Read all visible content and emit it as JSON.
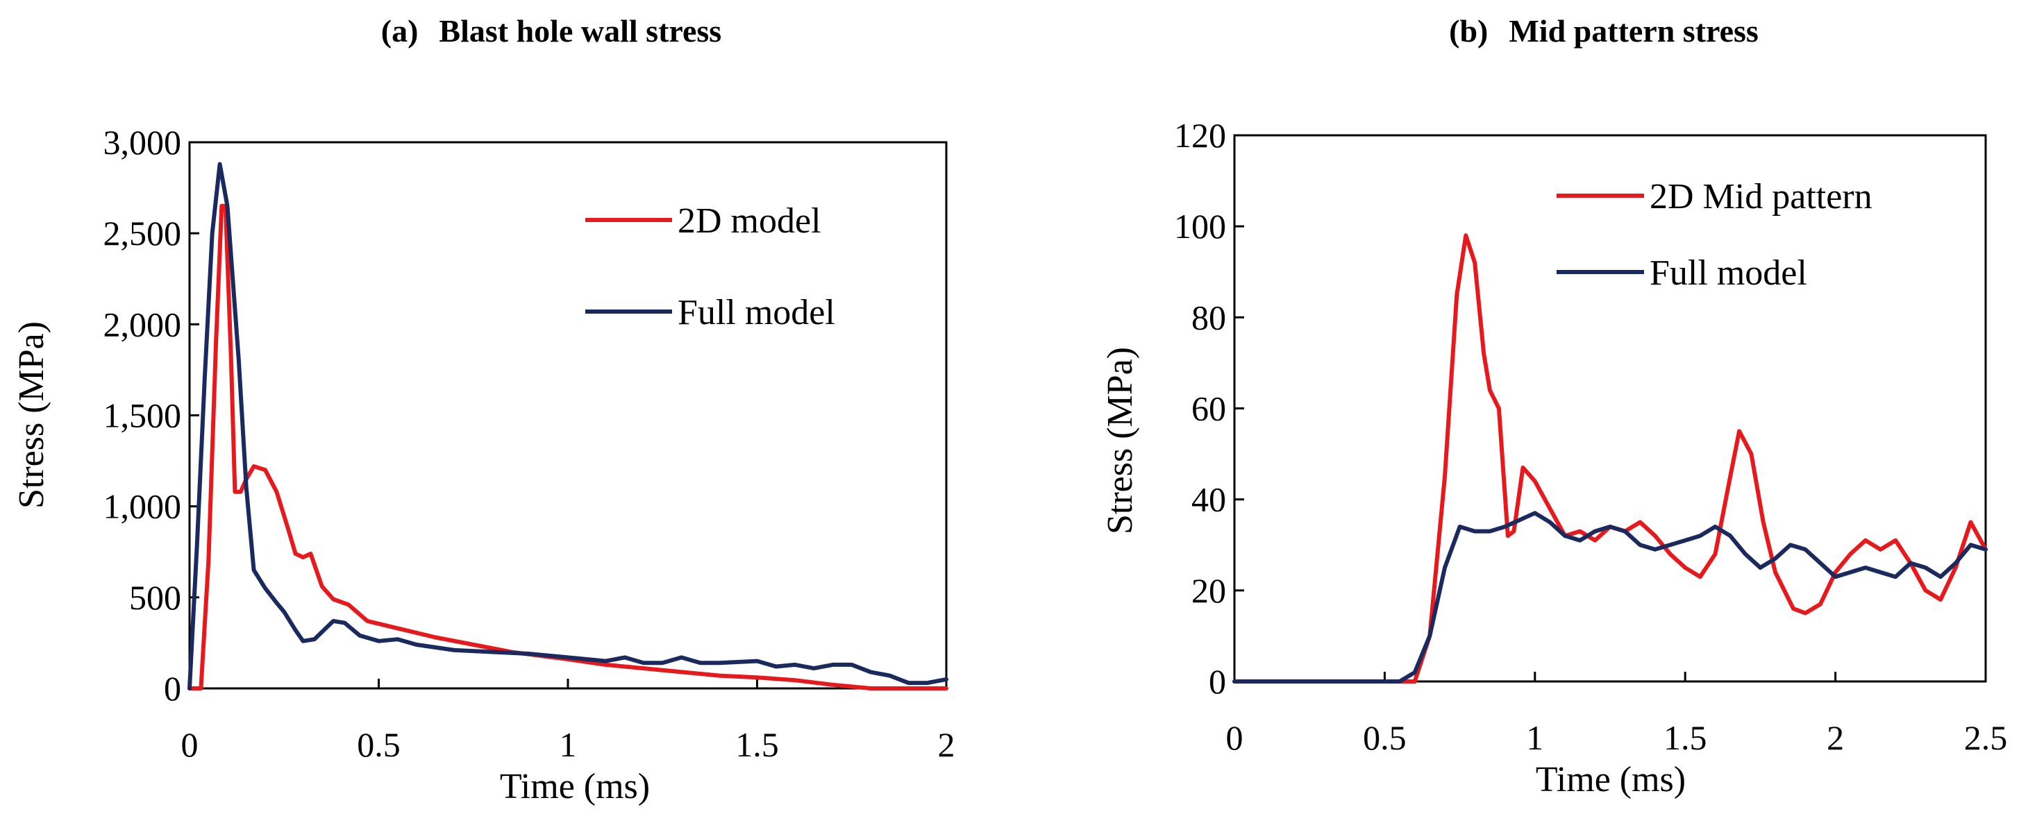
{
  "chart_data": [
    {
      "type": "line",
      "panel": "(a)",
      "title": "Blast hole wall stress",
      "xlabel": "Time (ms)",
      "ylabel": "Stress (MPa)",
      "xlim": [
        0,
        2
      ],
      "ylim": [
        0,
        3000
      ],
      "xticks": [
        0,
        0.5,
        1,
        1.5,
        2
      ],
      "xtick_labels": [
        "0",
        "0.5",
        "1",
        "1.5",
        "2"
      ],
      "yticks": [
        0,
        500,
        1000,
        1500,
        2000,
        2500,
        3000
      ],
      "ytick_labels": [
        "0",
        "500",
        "1,000",
        "1,500",
        "2,000",
        "2,500",
        "3,000"
      ],
      "legend_position": "top-right",
      "series": [
        {
          "name": "2D model",
          "color": "#e8191c",
          "points": [
            [
              0,
              0
            ],
            [
              0.03,
              0
            ],
            [
              0.05,
              700
            ],
            [
              0.07,
              1900
            ],
            [
              0.085,
              2650
            ],
            [
              0.095,
              2650
            ],
            [
              0.11,
              1800
            ],
            [
              0.12,
              1080
            ],
            [
              0.135,
              1080
            ],
            [
              0.15,
              1150
            ],
            [
              0.17,
              1220
            ],
            [
              0.2,
              1200
            ],
            [
              0.23,
              1080
            ],
            [
              0.26,
              880
            ],
            [
              0.28,
              740
            ],
            [
              0.3,
              720
            ],
            [
              0.32,
              740
            ],
            [
              0.35,
              560
            ],
            [
              0.38,
              490
            ],
            [
              0.42,
              460
            ],
            [
              0.47,
              370
            ],
            [
              0.55,
              330
            ],
            [
              0.65,
              280
            ],
            [
              0.75,
              240
            ],
            [
              0.85,
              200
            ],
            [
              1.0,
              160
            ],
            [
              1.1,
              130
            ],
            [
              1.2,
              110
            ],
            [
              1.3,
              90
            ],
            [
              1.4,
              70
            ],
            [
              1.5,
              60
            ],
            [
              1.6,
              45
            ],
            [
              1.7,
              20
            ],
            [
              1.8,
              0
            ],
            [
              2.0,
              0
            ]
          ]
        },
        {
          "name": "Full model",
          "color": "#1b2a5e",
          "points": [
            [
              0,
              0
            ],
            [
              0.02,
              800
            ],
            [
              0.04,
              1700
            ],
            [
              0.06,
              2500
            ],
            [
              0.08,
              2880
            ],
            [
              0.1,
              2650
            ],
            [
              0.13,
              1800
            ],
            [
              0.15,
              1100
            ],
            [
              0.17,
              650
            ],
            [
              0.2,
              550
            ],
            [
              0.23,
              470
            ],
            [
              0.25,
              420
            ],
            [
              0.28,
              320
            ],
            [
              0.3,
              260
            ],
            [
              0.33,
              270
            ],
            [
              0.36,
              330
            ],
            [
              0.38,
              370
            ],
            [
              0.41,
              360
            ],
            [
              0.45,
              290
            ],
            [
              0.5,
              260
            ],
            [
              0.55,
              270
            ],
            [
              0.6,
              240
            ],
            [
              0.7,
              210
            ],
            [
              0.8,
              200
            ],
            [
              0.9,
              190
            ],
            [
              1.0,
              170
            ],
            [
              1.1,
              150
            ],
            [
              1.15,
              170
            ],
            [
              1.2,
              140
            ],
            [
              1.25,
              140
            ],
            [
              1.3,
              170
            ],
            [
              1.35,
              140
            ],
            [
              1.4,
              140
            ],
            [
              1.5,
              150
            ],
            [
              1.55,
              120
            ],
            [
              1.6,
              130
            ],
            [
              1.65,
              110
            ],
            [
              1.7,
              130
            ],
            [
              1.75,
              130
            ],
            [
              1.8,
              90
            ],
            [
              1.85,
              70
            ],
            [
              1.9,
              30
            ],
            [
              1.95,
              30
            ],
            [
              2.0,
              50
            ]
          ]
        }
      ]
    },
    {
      "type": "line",
      "panel": "(b)",
      "title": "Mid pattern stress",
      "xlabel": "Time (ms)",
      "ylabel": "Stress (MPa)",
      "xlim": [
        0,
        2.5
      ],
      "ylim": [
        0,
        120
      ],
      "xticks": [
        0,
        0.5,
        1,
        1.5,
        2,
        2.5
      ],
      "xtick_labels": [
        "0",
        "0.5",
        "1",
        "1.5",
        "2",
        "2.5"
      ],
      "yticks": [
        0,
        20,
        40,
        60,
        80,
        100,
        120
      ],
      "ytick_labels": [
        "0",
        "20",
        "40",
        "60",
        "80",
        "100",
        "120"
      ],
      "legend_position": "top-right",
      "series": [
        {
          "name": "2D Mid pattern",
          "color": "#e8191c",
          "points": [
            [
              0,
              0
            ],
            [
              0.55,
              0
            ],
            [
              0.6,
              0
            ],
            [
              0.65,
              10
            ],
            [
              0.7,
              45
            ],
            [
              0.74,
              85
            ],
            [
              0.77,
              98
            ],
            [
              0.8,
              92
            ],
            [
              0.83,
              72
            ],
            [
              0.85,
              64
            ],
            [
              0.88,
              60
            ],
            [
              0.91,
              32
            ],
            [
              0.93,
              33
            ],
            [
              0.96,
              47
            ],
            [
              1.0,
              44
            ],
            [
              1.05,
              38
            ],
            [
              1.1,
              32
            ],
            [
              1.15,
              33
            ],
            [
              1.2,
              31
            ],
            [
              1.25,
              34
            ],
            [
              1.3,
              33
            ],
            [
              1.35,
              35
            ],
            [
              1.4,
              32
            ],
            [
              1.45,
              28
            ],
            [
              1.5,
              25
            ],
            [
              1.55,
              23
            ],
            [
              1.6,
              28
            ],
            [
              1.65,
              45
            ],
            [
              1.68,
              55
            ],
            [
              1.72,
              50
            ],
            [
              1.76,
              35
            ],
            [
              1.8,
              24
            ],
            [
              1.83,
              20
            ],
            [
              1.86,
              16
            ],
            [
              1.9,
              15
            ],
            [
              1.95,
              17
            ],
            [
              2.0,
              24
            ],
            [
              2.05,
              28
            ],
            [
              2.1,
              31
            ],
            [
              2.15,
              29
            ],
            [
              2.2,
              31
            ],
            [
              2.25,
              26
            ],
            [
              2.3,
              20
            ],
            [
              2.35,
              18
            ],
            [
              2.4,
              25
            ],
            [
              2.45,
              35
            ],
            [
              2.5,
              29
            ]
          ]
        },
        {
          "name": "Full model",
          "color": "#1b2a5e",
          "points": [
            [
              0,
              0
            ],
            [
              0.55,
              0
            ],
            [
              0.6,
              2
            ],
            [
              0.65,
              10
            ],
            [
              0.7,
              25
            ],
            [
              0.75,
              34
            ],
            [
              0.8,
              33
            ],
            [
              0.85,
              33
            ],
            [
              0.9,
              34
            ],
            [
              1.0,
              37
            ],
            [
              1.05,
              35
            ],
            [
              1.1,
              32
            ],
            [
              1.15,
              31
            ],
            [
              1.2,
              33
            ],
            [
              1.25,
              34
            ],
            [
              1.3,
              33
            ],
            [
              1.35,
              30
            ],
            [
              1.4,
              29
            ],
            [
              1.45,
              30
            ],
            [
              1.5,
              31
            ],
            [
              1.55,
              32
            ],
            [
              1.6,
              34
            ],
            [
              1.65,
              32
            ],
            [
              1.7,
              28
            ],
            [
              1.75,
              25
            ],
            [
              1.8,
              27
            ],
            [
              1.85,
              30
            ],
            [
              1.9,
              29
            ],
            [
              1.95,
              26
            ],
            [
              2.0,
              23
            ],
            [
              2.05,
              24
            ],
            [
              2.1,
              25
            ],
            [
              2.15,
              24
            ],
            [
              2.2,
              23
            ],
            [
              2.25,
              26
            ],
            [
              2.3,
              25
            ],
            [
              2.35,
              23
            ],
            [
              2.4,
              26
            ],
            [
              2.45,
              30
            ],
            [
              2.5,
              29
            ]
          ]
        }
      ]
    }
  ]
}
